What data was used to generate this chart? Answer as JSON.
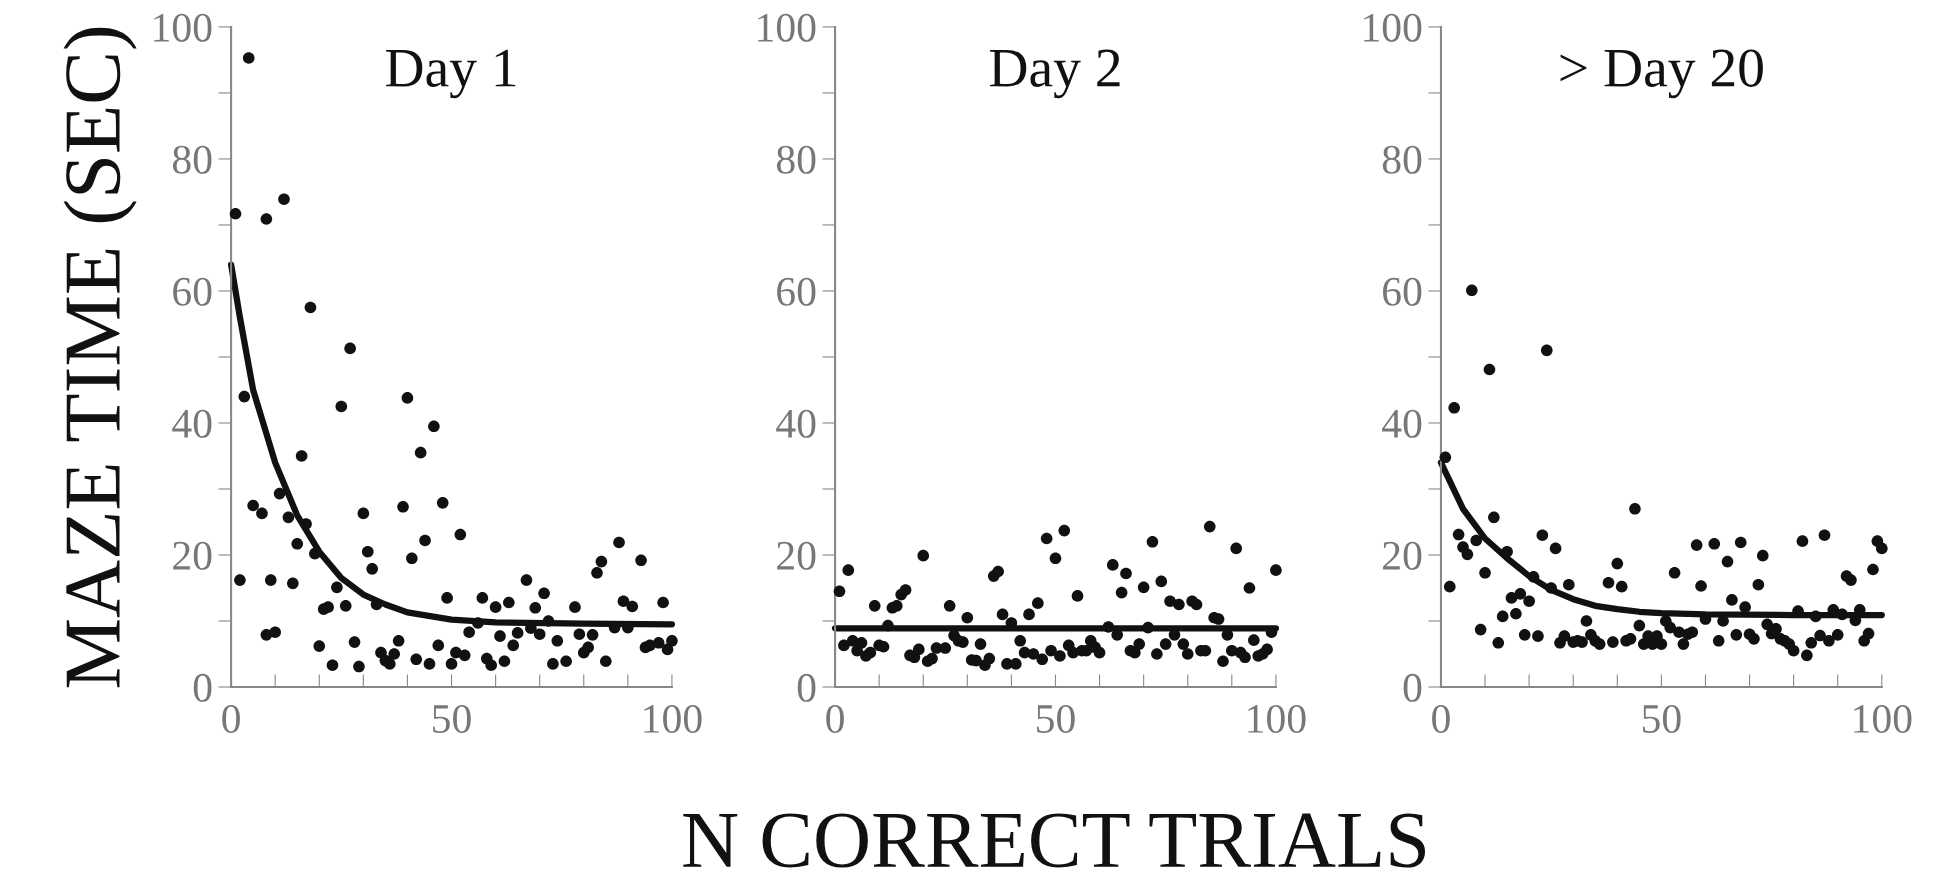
{
  "chart_data": [
    {
      "type": "scatter",
      "title": "Day 1",
      "ylabel": "MAZE TIME (SEC)",
      "xlim": [
        0,
        100
      ],
      "ylim": [
        0,
        100
      ],
      "xticks": [
        0,
        {
          "value": 10,
          "label": null
        },
        {
          "value": 20,
          "label": null
        },
        {
          "value": 30,
          "label": null
        },
        {
          "value": 40,
          "label": null
        },
        50,
        {
          "value": 60,
          "label": null
        },
        {
          "value": 70,
          "label": null
        },
        {
          "value": 80,
          "label": null
        },
        {
          "value": 90,
          "label": null
        },
        100
      ],
      "yticks": [
        0,
        {
          "value": 10,
          "label": null
        },
        20,
        {
          "value": 30,
          "label": null
        },
        40,
        {
          "value": 50,
          "label": null
        },
        60,
        {
          "value": 70,
          "label": null
        },
        80,
        {
          "value": 90,
          "label": null
        },
        100
      ],
      "series": [
        {
          "marker": "circle",
          "color": "#111111",
          "x": [
            1,
            4,
            8,
            12,
            18,
            27,
            3,
            25,
            40,
            46,
            43,
            16,
            5,
            7,
            11,
            13,
            17,
            15,
            19,
            30,
            39,
            48,
            52,
            31,
            32,
            44,
            41,
            2,
            9,
            14,
            24,
            21,
            22,
            26,
            33,
            8,
            10,
            20,
            23,
            28,
            29,
            34,
            35,
            36,
            37,
            38,
            42,
            45,
            47,
            49,
            50,
            51,
            53,
            54,
            56,
            57,
            58,
            59,
            60,
            61,
            62,
            63,
            64,
            65,
            67,
            68,
            69,
            70,
            71,
            72,
            73,
            74,
            76,
            78,
            79,
            80,
            81,
            82,
            83,
            84,
            85,
            87,
            88,
            89,
            90,
            91,
            93,
            94,
            95,
            97,
            98,
            99,
            100
          ],
          "values": [
            71.7,
            95.3,
            70.9,
            73.9,
            57.5,
            51.3,
            44,
            42.5,
            43.8,
            39.5,
            35.5,
            35,
            27.5,
            26.3,
            29.3,
            25.7,
            24.7,
            21.7,
            20.2,
            26.3,
            27.3,
            27.9,
            23.1,
            20.5,
            17.9,
            22.2,
            19.5,
            16.2,
            16.2,
            15.7,
            15.1,
            11.8,
            12.1,
            12.3,
            12.5,
            7.9,
            8.3,
            6.2,
            3.3,
            6.8,
            3.1,
            5.2,
            4,
            3.5,
            5,
            7,
            4.2,
            3.5,
            6.3,
            13.5,
            3.5,
            5.2,
            4.8,
            8.3,
            9.7,
            13.5,
            4.3,
            3.3,
            12.1,
            7.7,
            3.9,
            12.8,
            6.3,
            8.2,
            16.2,
            8.9,
            12,
            8,
            14.2,
            10,
            3.5,
            7,
            3.9,
            12.1,
            8,
            5.2,
            6,
            7.9,
            17.3,
            19,
            3.9,
            9,
            21.9,
            13,
            9,
            12.2,
            19.2,
            6,
            6.3,
            6.7,
            12.8,
            5.7,
            7
          ]
        },
        {
          "type": "line",
          "color": "#111111",
          "line_style": "solid",
          "x": [
            0,
            2,
            5,
            10,
            15,
            20,
            25,
            30,
            35,
            40,
            50,
            60,
            80,
            100
          ],
          "values": [
            64,
            56,
            45,
            34,
            26,
            20.5,
            16.5,
            14,
            12.5,
            11.3,
            10.2,
            9.8,
            9.6,
            9.5
          ]
        }
      ]
    },
    {
      "type": "scatter",
      "title": "Day 2",
      "xlabel": "N CORRECT TRIALS",
      "xlim": [
        0,
        100
      ],
      "ylim": [
        0,
        100
      ],
      "xticks": [
        0,
        {
          "value": 10,
          "label": null
        },
        {
          "value": 20,
          "label": null
        },
        {
          "value": 30,
          "label": null
        },
        {
          "value": 40,
          "label": null
        },
        50,
        {
          "value": 60,
          "label": null
        },
        {
          "value": 70,
          "label": null
        },
        {
          "value": 80,
          "label": null
        },
        {
          "value": 90,
          "label": null
        },
        100
      ],
      "yticks": [
        0,
        {
          "value": 10,
          "label": null
        },
        20,
        {
          "value": 30,
          "label": null
        },
        40,
        {
          "value": 50,
          "label": null
        },
        60,
        {
          "value": 70,
          "label": null
        },
        80,
        {
          "value": 90,
          "label": null
        },
        100
      ],
      "series": [
        {
          "marker": "circle",
          "color": "#111111",
          "x": [
            1,
            3,
            2,
            4,
            5,
            6,
            7,
            8,
            9,
            10,
            11,
            12,
            13,
            14,
            15,
            16,
            17,
            18,
            19,
            20,
            21,
            22,
            23,
            25,
            26,
            27,
            28,
            29,
            30,
            31,
            33,
            32,
            34,
            35,
            36,
            37,
            38,
            39,
            40,
            41,
            42,
            43,
            44,
            45,
            46,
            47,
            48,
            49,
            50,
            51,
            52,
            53,
            54,
            55,
            56,
            57,
            58,
            59,
            60,
            62,
            63,
            64,
            65,
            66,
            67,
            68,
            69,
            70,
            71,
            72,
            73,
            74,
            75,
            76,
            77,
            78,
            79,
            80,
            81,
            82,
            83,
            84,
            85,
            86,
            87,
            88,
            89,
            90,
            91,
            92,
            93,
            94,
            95,
            96,
            97,
            98,
            99,
            100
          ],
          "values": [
            14.5,
            17.7,
            6.3,
            7,
            5.5,
            6.7,
            4.7,
            5.2,
            12.3,
            6.3,
            6.1,
            9.3,
            12,
            12.3,
            14,
            14.7,
            4.8,
            4.5,
            5.7,
            19.9,
            3.9,
            4.3,
            5.9,
            5.9,
            12.3,
            7.8,
            7,
            6.8,
            10.5,
            4.1,
            6.5,
            4,
            3.3,
            4.3,
            16.8,
            17.5,
            11,
            3.5,
            9.7,
            3.5,
            7,
            5.2,
            11,
            5,
            12.7,
            4.2,
            22.5,
            5.5,
            19.5,
            4.7,
            23.7,
            6.3,
            5.2,
            13.8,
            5.5,
            5.5,
            7,
            6,
            5.2,
            9.1,
            18.5,
            7.9,
            14.3,
            17.2,
            5.5,
            5.2,
            6.5,
            15.1,
            9,
            22,
            5,
            16,
            6.5,
            13,
            7.9,
            12.5,
            6.5,
            5,
            13,
            12.5,
            5.5,
            5.5,
            24.3,
            10.5,
            10.3,
            3.9,
            7.9,
            5.5,
            21,
            5.2,
            4.5,
            15,
            7.1,
            4.7,
            5,
            5.7,
            8.3,
            17.7
          ]
        },
        {
          "type": "line",
          "color": "#111111",
          "line_style": "solid",
          "x": [
            0,
            100
          ],
          "values": [
            8.9,
            8.9
          ]
        }
      ]
    },
    {
      "type": "scatter",
      "title": "> Day 20",
      "xlim": [
        0,
        100
      ],
      "ylim": [
        0,
        100
      ],
      "xticks": [
        0,
        {
          "value": 10,
          "label": null
        },
        {
          "value": 20,
          "label": null
        },
        {
          "value": 30,
          "label": null
        },
        {
          "value": 40,
          "label": null
        },
        50,
        {
          "value": 60,
          "label": null
        },
        {
          "value": 70,
          "label": null
        },
        {
          "value": 80,
          "label": null
        },
        {
          "value": 90,
          "label": null
        },
        100
      ],
      "yticks": [
        0,
        {
          "value": 10,
          "label": null
        },
        20,
        {
          "value": 30,
          "label": null
        },
        40,
        {
          "value": 50,
          "label": null
        },
        60,
        {
          "value": 70,
          "label": null
        },
        80,
        {
          "value": 90,
          "label": null
        },
        100
      ],
      "series": [
        {
          "marker": "circle",
          "color": "#111111",
          "x": [
            1,
            2,
            3,
            4,
            5,
            6,
            7,
            8,
            9,
            10,
            11,
            12,
            13,
            14,
            15,
            16,
            17,
            18,
            19,
            20,
            21,
            22,
            23,
            24,
            25,
            26,
            27,
            28,
            29,
            30,
            31,
            32,
            33,
            34,
            35,
            36,
            38,
            39,
            40,
            41,
            42,
            43,
            44,
            45,
            46,
            47,
            48,
            49,
            50,
            51,
            52,
            53,
            54,
            55,
            56,
            57,
            58,
            59,
            60,
            62,
            63,
            64,
            65,
            66,
            67,
            68,
            69,
            70,
            71,
            72,
            73,
            74,
            75,
            76,
            77,
            78,
            79,
            80,
            81,
            82,
            83,
            84,
            85,
            86,
            87,
            88,
            89,
            90,
            91,
            92,
            93,
            94,
            95,
            96,
            97,
            98,
            99,
            100
          ],
          "values": [
            34.8,
            15.2,
            42.3,
            23.1,
            21.2,
            20.1,
            60.1,
            22.2,
            8.7,
            17.3,
            48.1,
            25.7,
            6.7,
            10.7,
            20.5,
            13.5,
            11.1,
            14.1,
            7.9,
            13,
            16.7,
            7.7,
            23,
            51,
            15,
            21,
            6.7,
            7.7,
            15.5,
            6.8,
            7,
            6.8,
            10,
            7.9,
            7,
            6.5,
            15.8,
            6.8,
            18.7,
            15.2,
            7,
            7.3,
            27,
            9.3,
            6.5,
            7.7,
            6.5,
            7.7,
            6.5,
            10,
            9,
            17.3,
            8.3,
            6.5,
            8,
            8.3,
            21.5,
            15.3,
            10.3,
            21.7,
            7,
            10,
            19,
            13.2,
            7.9,
            21.9,
            12.1,
            8,
            7.3,
            15.5,
            19.9,
            9.5,
            8.1,
            8.8,
            7.3,
            7,
            6.5,
            5.5,
            11.5,
            22.1,
            4.8,
            6.7,
            10.7,
            7.8,
            23,
            7,
            11.7,
            7.9,
            11,
            16.8,
            16.2,
            10.1,
            11.7,
            7,
            8.1,
            17.8,
            22.1,
            21
          ]
        },
        {
          "type": "line",
          "color": "#111111",
          "line_style": "solid",
          "x": [
            0,
            5,
            10,
            15,
            20,
            25,
            30,
            35,
            40,
            45,
            50,
            60,
            80,
            100
          ],
          "values": [
            34,
            27,
            22.5,
            19.5,
            16.8,
            14.7,
            13.3,
            12.3,
            11.8,
            11.4,
            11.2,
            11,
            10.9,
            10.9
          ]
        }
      ]
    }
  ]
}
